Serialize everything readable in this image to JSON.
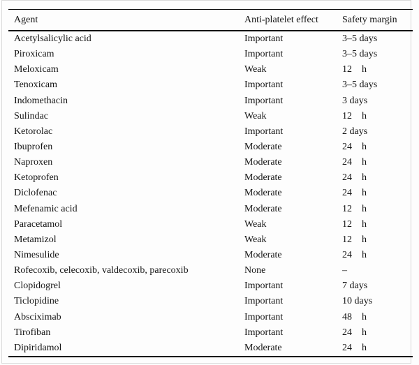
{
  "table": {
    "columns": [
      {
        "label": "Agent"
      },
      {
        "label": "Anti-platelet effect"
      },
      {
        "label": "Safety margin"
      }
    ],
    "rows": [
      {
        "agent": "Acetylsalicylic acid",
        "effect": "Important",
        "margin": "3–5 days",
        "unit": ""
      },
      {
        "agent": "Piroxicam",
        "effect": "Important",
        "margin": "3–5 days",
        "unit": ""
      },
      {
        "agent": "Meloxicam",
        "effect": "Weak",
        "margin": "12",
        "unit": "h"
      },
      {
        "agent": "Tenoxicam",
        "effect": "Important",
        "margin": "3–5 days",
        "unit": ""
      },
      {
        "agent": "Indomethacin",
        "effect": "Important",
        "margin": "3 days",
        "unit": ""
      },
      {
        "agent": "Sulindac",
        "effect": "Weak",
        "margin": "12",
        "unit": "h"
      },
      {
        "agent": "Ketorolac",
        "effect": "Important",
        "margin": "2 days",
        "unit": ""
      },
      {
        "agent": "Ibuprofen",
        "effect": "Moderate",
        "margin": "24",
        "unit": "h"
      },
      {
        "agent": "Naproxen",
        "effect": "Moderate",
        "margin": "24",
        "unit": "h"
      },
      {
        "agent": "Ketoprofen",
        "effect": "Moderate",
        "margin": "24",
        "unit": "h"
      },
      {
        "agent": "Diclofenac",
        "effect": "Moderate",
        "margin": "24",
        "unit": "h"
      },
      {
        "agent": "Mefenamic acid",
        "effect": "Moderate",
        "margin": "12",
        "unit": "h"
      },
      {
        "agent": "Paracetamol",
        "effect": "Weak",
        "margin": "12",
        "unit": "h"
      },
      {
        "agent": "Metamizol",
        "effect": "Weak",
        "margin": "12",
        "unit": "h"
      },
      {
        "agent": "Nimesulide",
        "effect": "Moderate",
        "margin": "24",
        "unit": "h"
      },
      {
        "agent": "Rofecoxib, celecoxib, valdecoxib, parecoxib",
        "effect": "None",
        "margin": "–",
        "unit": ""
      },
      {
        "agent": "Clopidogrel",
        "effect": "Important",
        "margin": "7 days",
        "unit": ""
      },
      {
        "agent": "Ticlopidine",
        "effect": "Important",
        "margin": "10 days",
        "unit": ""
      },
      {
        "agent": "Absciximab",
        "effect": "Important",
        "margin": "48",
        "unit": "h"
      },
      {
        "agent": "Tirofiban",
        "effect": "Important",
        "margin": "24",
        "unit": "h"
      },
      {
        "agent": "Dipiridamol",
        "effect": "Moderate",
        "margin": "24",
        "unit": "h"
      }
    ]
  }
}
